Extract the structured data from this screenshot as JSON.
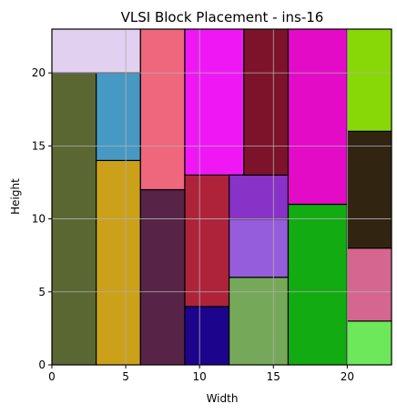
{
  "chart_data": {
    "type": "block_placement",
    "title": "VLSI Block Placement - ins-16",
    "xlabel": "Width",
    "ylabel": "Height",
    "xlim": [
      0,
      23
    ],
    "ylim": [
      0,
      23
    ],
    "xticks": [
      0,
      5,
      10,
      15,
      20
    ],
    "yticks": [
      0,
      5,
      10,
      15,
      20
    ],
    "grid": true,
    "blocks": [
      {
        "x": 0,
        "y": 0,
        "w": 3,
        "h": 20,
        "color": "#5b6732"
      },
      {
        "x": 0,
        "y": 20,
        "w": 6,
        "h": 3,
        "color": "#e2d0f0"
      },
      {
        "x": 3,
        "y": 0,
        "w": 3,
        "h": 14,
        "color": "#cca11a"
      },
      {
        "x": 3,
        "y": 14,
        "w": 3,
        "h": 6,
        "color": "#4699c3"
      },
      {
        "x": 6,
        "y": 0,
        "w": 3,
        "h": 12,
        "color": "#572447"
      },
      {
        "x": 6,
        "y": 12,
        "w": 3,
        "h": 11,
        "color": "#ee677c"
      },
      {
        "x": 9,
        "y": 0,
        "w": 3,
        "h": 4,
        "color": "#1c048c"
      },
      {
        "x": 9,
        "y": 4,
        "w": 3,
        "h": 9,
        "color": "#ae2339"
      },
      {
        "x": 9,
        "y": 13,
        "w": 4,
        "h": 10,
        "color": "#ef18f5"
      },
      {
        "x": 12,
        "y": 0,
        "w": 4,
        "h": 6,
        "color": "#76a85a"
      },
      {
        "x": 12,
        "y": 6,
        "w": 4,
        "h": 4,
        "color": "#955cdb"
      },
      {
        "x": 12,
        "y": 10,
        "w": 4,
        "h": 3,
        "color": "#8832c8"
      },
      {
        "x": 13,
        "y": 13,
        "w": 3,
        "h": 10,
        "color": "#7d132b"
      },
      {
        "x": 16,
        "y": 0,
        "w": 4,
        "h": 11,
        "color": "#12ac12"
      },
      {
        "x": 16,
        "y": 11,
        "w": 4,
        "h": 12,
        "color": "#e40bc7"
      },
      {
        "x": 20,
        "y": 0,
        "w": 3,
        "h": 3,
        "color": "#6de85a"
      },
      {
        "x": 20,
        "y": 3,
        "w": 3,
        "h": 5,
        "color": "#d4668f"
      },
      {
        "x": 20,
        "y": 8,
        "w": 3,
        "h": 8,
        "color": "#312512"
      },
      {
        "x": 20,
        "y": 16,
        "w": 3,
        "h": 7,
        "color": "#88d808"
      }
    ]
  }
}
